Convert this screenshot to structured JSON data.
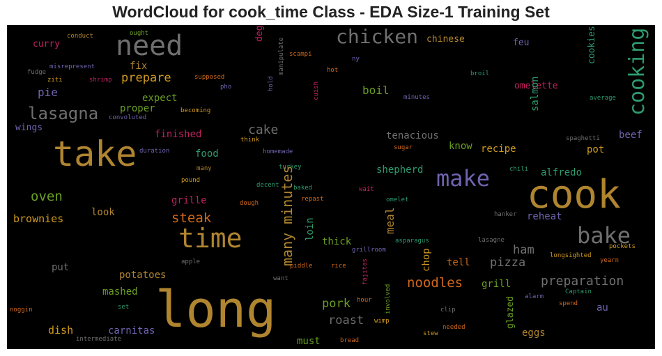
{
  "chart_data": {
    "type": "wordcloud",
    "title": "WordCloud for cook_time Class - EDA Size-1 Training Set",
    "background": "#000000",
    "words": [
      {
        "text": "long",
        "weight": 72,
        "color": "#b08530",
        "orient": "h"
      },
      {
        "text": "take",
        "weight": 50,
        "color": "#b08530",
        "orient": "h"
      },
      {
        "text": "cook",
        "weight": 56,
        "color": "#b08530",
        "orient": "h"
      },
      {
        "text": "need",
        "weight": 40,
        "color": "#6f6f6f",
        "orient": "h"
      },
      {
        "text": "time",
        "weight": 38,
        "color": "#b08530",
        "orient": "h"
      },
      {
        "text": "make",
        "weight": 32,
        "color": "#7064b0",
        "orient": "h"
      },
      {
        "text": "bake",
        "weight": 32,
        "color": "#6f6f6f",
        "orient": "h"
      },
      {
        "text": "cooking",
        "weight": 30,
        "color": "#2e9b6e",
        "orient": "v"
      },
      {
        "text": "chicken",
        "weight": 28,
        "color": "#6f6f6f",
        "orient": "h"
      },
      {
        "text": "lasagna",
        "weight": 24,
        "color": "#6f6f6f",
        "orient": "h"
      },
      {
        "text": "many minutes",
        "weight": 20,
        "color": "#b08530",
        "orient": "v"
      },
      {
        "text": "noodles",
        "weight": 19,
        "color": "#d0681a",
        "orient": "h"
      },
      {
        "text": "preparation",
        "weight": 18,
        "color": "#6f6f6f",
        "orient": "h"
      },
      {
        "text": "steak",
        "weight": 19,
        "color": "#d0681a",
        "orient": "h"
      },
      {
        "text": "oven",
        "weight": 19,
        "color": "#6a9e24",
        "orient": "h"
      },
      {
        "text": "cake",
        "weight": 18,
        "color": "#6f6f6f",
        "orient": "h"
      },
      {
        "text": "prepare",
        "weight": 17,
        "color": "#d09a20",
        "orient": "h"
      },
      {
        "text": "pork",
        "weight": 17,
        "color": "#6a9e24",
        "orient": "h"
      },
      {
        "text": "roast",
        "weight": 17,
        "color": "#6f6f6f",
        "orient": "h"
      },
      {
        "text": "pizza",
        "weight": 17,
        "color": "#6f6f6f",
        "orient": "h"
      },
      {
        "text": "ham",
        "weight": 17,
        "color": "#6f6f6f",
        "orient": "h"
      },
      {
        "text": "pie",
        "weight": 16,
        "color": "#7064b0",
        "orient": "h"
      },
      {
        "text": "boil",
        "weight": 16,
        "color": "#6a9e24",
        "orient": "h"
      },
      {
        "text": "meal",
        "weight": 16,
        "color": "#b08530",
        "orient": "v"
      },
      {
        "text": "brownies",
        "weight": 15,
        "color": "#d09a20",
        "orient": "h"
      },
      {
        "text": "dish",
        "weight": 15,
        "color": "#d09a20",
        "orient": "h"
      },
      {
        "text": "potatoes",
        "weight": 14,
        "color": "#b08530",
        "orient": "h"
      },
      {
        "text": "mashed",
        "weight": 14,
        "color": "#6a9e24",
        "orient": "h"
      },
      {
        "text": "carnitas",
        "weight": 14,
        "color": "#7064b0",
        "orient": "h"
      },
      {
        "text": "grill",
        "weight": 14,
        "color": "#6a9e24",
        "orient": "h"
      },
      {
        "text": "grille",
        "weight": 14,
        "color": "#c02060",
        "orient": "h"
      },
      {
        "text": "tell",
        "weight": 14,
        "color": "#d0681a",
        "orient": "h"
      },
      {
        "text": "fix",
        "weight": 14,
        "color": "#b08530",
        "orient": "h"
      },
      {
        "text": "proper",
        "weight": 14,
        "color": "#6a9e24",
        "orient": "h"
      },
      {
        "text": "expect",
        "weight": 14,
        "color": "#6a9e24",
        "orient": "h"
      },
      {
        "text": "finished",
        "weight": 14,
        "color": "#c02060",
        "orient": "h"
      },
      {
        "text": "food",
        "weight": 14,
        "color": "#2e9b6e",
        "orient": "h"
      },
      {
        "text": "beef",
        "weight": 14,
        "color": "#7064b0",
        "orient": "h"
      },
      {
        "text": "recipe",
        "weight": 14,
        "color": "#d09a20",
        "orient": "h"
      },
      {
        "text": "know",
        "weight": 14,
        "color": "#6a9e24",
        "orient": "h"
      },
      {
        "text": "shepherd",
        "weight": 14,
        "color": "#2e9b6e",
        "orient": "h"
      },
      {
        "text": "alfredo",
        "weight": 14,
        "color": "#2e9b6e",
        "orient": "h"
      },
      {
        "text": "reheat",
        "weight": 14,
        "color": "#7064b0",
        "orient": "h"
      },
      {
        "text": "omelette",
        "weight": 13,
        "color": "#c02060",
        "orient": "h"
      },
      {
        "text": "tenacious",
        "weight": 14,
        "color": "#6f6f6f",
        "orient": "h"
      },
      {
        "text": "thick",
        "weight": 14,
        "color": "#6a9e24",
        "orient": "h"
      },
      {
        "text": "eggs",
        "weight": 14,
        "color": "#b08530",
        "orient": "h"
      },
      {
        "text": "must",
        "weight": 14,
        "color": "#6a9e24",
        "orient": "h"
      },
      {
        "text": "put",
        "weight": 14,
        "color": "#6f6f6f",
        "orient": "h"
      },
      {
        "text": "look",
        "weight": 14,
        "color": "#b08530",
        "orient": "h"
      },
      {
        "text": "au",
        "weight": 14,
        "color": "#7064b0",
        "orient": "h"
      },
      {
        "text": "pot",
        "weight": 14,
        "color": "#d09a20",
        "orient": "h"
      },
      {
        "text": "chinese",
        "weight": 13,
        "color": "#b08530",
        "orient": "h"
      },
      {
        "text": "curry",
        "weight": 13,
        "color": "#c02060",
        "orient": "h"
      },
      {
        "text": "wings",
        "weight": 13,
        "color": "#7064b0",
        "orient": "h"
      },
      {
        "text": "feu",
        "weight": 13,
        "color": "#7064b0",
        "orient": "h"
      },
      {
        "text": "salmon",
        "weight": 14,
        "color": "#2e9b6e",
        "orient": "v"
      },
      {
        "text": "cookies",
        "weight": 13,
        "color": "#2e9b6e",
        "orient": "v"
      },
      {
        "text": "degrees",
        "weight": 13,
        "color": "#c02060",
        "orient": "v"
      },
      {
        "text": "loin",
        "weight": 14,
        "color": "#2e9b6e",
        "orient": "v"
      },
      {
        "text": "chop",
        "weight": 14,
        "color": "#d09a20",
        "orient": "v"
      },
      {
        "text": "glazed",
        "weight": 13,
        "color": "#6a9e24",
        "orient": "v"
      },
      {
        "text": "conduct",
        "weight": 9,
        "color": "#b08530",
        "orient": "h"
      },
      {
        "text": "ought",
        "weight": 9,
        "color": "#6a9e24",
        "orient": "h"
      },
      {
        "text": "misrepresent",
        "weight": 9,
        "color": "#7064b0",
        "orient": "h"
      },
      {
        "text": "fudge",
        "weight": 9,
        "color": "#6f6f6f",
        "orient": "h"
      },
      {
        "text": "ziti",
        "weight": 9,
        "color": "#d09a20",
        "orient": "h"
      },
      {
        "text": "shrimp",
        "weight": 9,
        "color": "#c02060",
        "orient": "h"
      },
      {
        "text": "supposed",
        "weight": 9,
        "color": "#d0681a",
        "orient": "h"
      },
      {
        "text": "pho",
        "weight": 9,
        "color": "#7064b0",
        "orient": "h"
      },
      {
        "text": "becoming",
        "weight": 9,
        "color": "#d09a20",
        "orient": "h"
      },
      {
        "text": "convoluted",
        "weight": 9,
        "color": "#7064b0",
        "orient": "h"
      },
      {
        "text": "scampi",
        "weight": 9,
        "color": "#d0681a",
        "orient": "h"
      },
      {
        "text": "hot",
        "weight": 9,
        "color": "#d0681a",
        "orient": "h"
      },
      {
        "text": "ny",
        "weight": 9,
        "color": "#7064b0",
        "orient": "h"
      },
      {
        "text": "broil",
        "weight": 9,
        "color": "#2e9b6e",
        "orient": "h"
      },
      {
        "text": "minutes",
        "weight": 9,
        "color": "#7064b0",
        "orient": "h"
      },
      {
        "text": "average",
        "weight": 9,
        "color": "#2e9b6e",
        "orient": "h"
      },
      {
        "text": "think",
        "weight": 9,
        "color": "#d09a20",
        "orient": "h"
      },
      {
        "text": "duration",
        "weight": 9,
        "color": "#7064b0",
        "orient": "h"
      },
      {
        "text": "homemade",
        "weight": 9,
        "color": "#7064b0",
        "orient": "h"
      },
      {
        "text": "sugar",
        "weight": 9,
        "color": "#d0681a",
        "orient": "h"
      },
      {
        "text": "spaghetti",
        "weight": 9,
        "color": "#6f6f6f",
        "orient": "h"
      },
      {
        "text": "many",
        "weight": 9,
        "color": "#b08530",
        "orient": "h"
      },
      {
        "text": "turkey",
        "weight": 9,
        "color": "#2e9b6e",
        "orient": "h"
      },
      {
        "text": "chili",
        "weight": 9,
        "color": "#2e9b6e",
        "orient": "h"
      },
      {
        "text": "pound",
        "weight": 9,
        "color": "#d09a20",
        "orient": "h"
      },
      {
        "text": "decent",
        "weight": 9,
        "color": "#2e9b6e",
        "orient": "h"
      },
      {
        "text": "baked",
        "weight": 9,
        "color": "#2e9b6e",
        "orient": "h"
      },
      {
        "text": "wait",
        "weight": 9,
        "color": "#c02060",
        "orient": "h"
      },
      {
        "text": "dough",
        "weight": 9,
        "color": "#d0681a",
        "orient": "h"
      },
      {
        "text": "repast",
        "weight": 9,
        "color": "#d0681a",
        "orient": "h"
      },
      {
        "text": "omelet",
        "weight": 9,
        "color": "#2e9b6e",
        "orient": "h"
      },
      {
        "text": "hanker",
        "weight": 9,
        "color": "#6f6f6f",
        "orient": "h"
      },
      {
        "text": "grillroom",
        "weight": 9,
        "color": "#7064b0",
        "orient": "h"
      },
      {
        "text": "asparagus",
        "weight": 9,
        "color": "#2e9b6e",
        "orient": "h"
      },
      {
        "text": "lasagne",
        "weight": 9,
        "color": "#6f6f6f",
        "orient": "h"
      },
      {
        "text": "pockets",
        "weight": 9,
        "color": "#d09a20",
        "orient": "h"
      },
      {
        "text": "longsighted",
        "weight": 9,
        "color": "#d09a20",
        "orient": "h"
      },
      {
        "text": "yearn",
        "weight": 9,
        "color": "#d0681a",
        "orient": "h"
      },
      {
        "text": "apple",
        "weight": 9,
        "color": "#6f6f6f",
        "orient": "h"
      },
      {
        "text": "piddle",
        "weight": 9,
        "color": "#d0681a",
        "orient": "h"
      },
      {
        "text": "rice",
        "weight": 9,
        "color": "#d0681a",
        "orient": "h"
      },
      {
        "text": "want",
        "weight": 9,
        "color": "#6f6f6f",
        "orient": "h"
      },
      {
        "text": "alarm",
        "weight": 9,
        "color": "#7064b0",
        "orient": "h"
      },
      {
        "text": "Captain",
        "weight": 9,
        "color": "#2e9b6e",
        "orient": "h"
      },
      {
        "text": "hour",
        "weight": 9,
        "color": "#d0681a",
        "orient": "h"
      },
      {
        "text": "spend",
        "weight": 9,
        "color": "#d0681a",
        "orient": "h"
      },
      {
        "text": "noggin",
        "weight": 9,
        "color": "#d0681a",
        "orient": "h"
      },
      {
        "text": "set",
        "weight": 9,
        "color": "#2e9b6e",
        "orient": "h"
      },
      {
        "text": "clip",
        "weight": 9,
        "color": "#6f6f6f",
        "orient": "h"
      },
      {
        "text": "wimp",
        "weight": 9,
        "color": "#d09a20",
        "orient": "h"
      },
      {
        "text": "needed",
        "weight": 9,
        "color": "#d0681a",
        "orient": "h"
      },
      {
        "text": "stew",
        "weight": 9,
        "color": "#d09a20",
        "orient": "h"
      },
      {
        "text": "intermediate",
        "weight": 9,
        "color": "#6f6f6f",
        "orient": "h"
      },
      {
        "text": "bread",
        "weight": 9,
        "color": "#d0681a",
        "orient": "h"
      },
      {
        "text": "manipulate",
        "weight": 9,
        "color": "#6f6f6f",
        "orient": "v"
      },
      {
        "text": "hold",
        "weight": 9,
        "color": "#7064b0",
        "orient": "v"
      },
      {
        "text": "cuish",
        "weight": 9,
        "color": "#c02060",
        "orient": "v"
      },
      {
        "text": "fajitas",
        "weight": 9,
        "color": "#c02060",
        "orient": "v"
      },
      {
        "text": "involved",
        "weight": 9,
        "color": "#6a9e24",
        "orient": "v"
      }
    ]
  }
}
